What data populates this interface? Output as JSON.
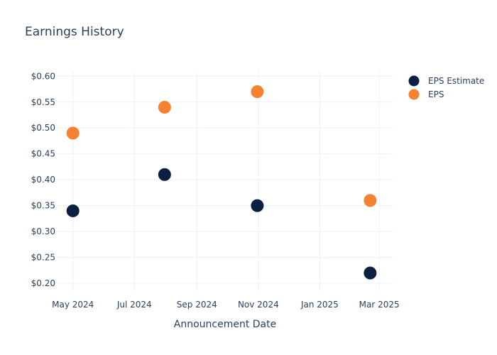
{
  "chart_data": {
    "type": "scatter",
    "title": "Earnings History",
    "xlabel": "Announcement Date",
    "ylabel": "",
    "ylim": [
      0.185,
      0.61
    ],
    "xlim": [
      "2024-04-15",
      "2025-03-15"
    ],
    "grid": true,
    "legend_position": "top-right",
    "x_ticks": [
      {
        "date": "2024-05-01",
        "label": "May 2024"
      },
      {
        "date": "2024-07-01",
        "label": "Jul 2024"
      },
      {
        "date": "2024-09-01",
        "label": "Sep 2024"
      },
      {
        "date": "2024-11-01",
        "label": "Nov 2024"
      },
      {
        "date": "2025-01-01",
        "label": "Jan 2025"
      },
      {
        "date": "2025-03-01",
        "label": "Mar 2025"
      }
    ],
    "y_ticks": [
      {
        "value": 0.2,
        "label": "$0.20"
      },
      {
        "value": 0.25,
        "label": "$0.25"
      },
      {
        "value": 0.3,
        "label": "$0.30"
      },
      {
        "value": 0.35,
        "label": "$0.35"
      },
      {
        "value": 0.4,
        "label": "$0.40"
      },
      {
        "value": 0.45,
        "label": "$0.45"
      },
      {
        "value": 0.5,
        "label": "$0.50"
      },
      {
        "value": 0.55,
        "label": "$0.55"
      },
      {
        "value": 0.6,
        "label": "$0.60"
      }
    ],
    "series": [
      {
        "name": "EPS Estimate",
        "color": "#0b1f40",
        "points": [
          {
            "x": "2024-05-01",
            "y": 0.34
          },
          {
            "x": "2024-07-31",
            "y": 0.41
          },
          {
            "x": "2024-10-31",
            "y": 0.35
          },
          {
            "x": "2025-02-20",
            "y": 0.22
          }
        ]
      },
      {
        "name": "EPS",
        "color": "#f58231",
        "points": [
          {
            "x": "2024-05-01",
            "y": 0.49
          },
          {
            "x": "2024-07-31",
            "y": 0.54
          },
          {
            "x": "2024-10-31",
            "y": 0.57
          },
          {
            "x": "2025-02-20",
            "y": 0.36
          }
        ]
      }
    ]
  }
}
